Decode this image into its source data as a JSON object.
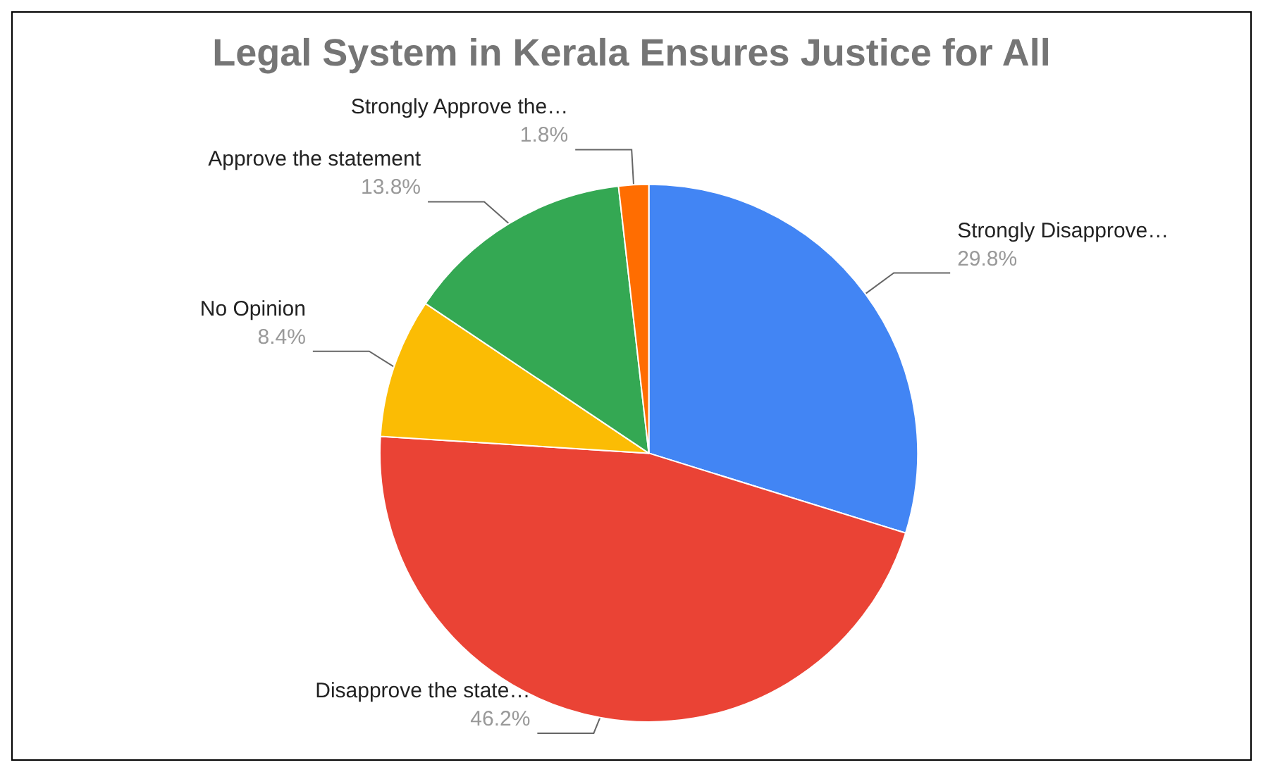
{
  "chart_data": {
    "type": "pie",
    "title": "Legal System in Kerala Ensures Justice for All",
    "categories": [
      "Strongly Disapprove…",
      "Disapprove the state…",
      "No Opinion",
      "Approve the statement",
      "Strongly Approve the…"
    ],
    "values": [
      29.8,
      46.2,
      8.4,
      13.8,
      1.8
    ],
    "colors": [
      "#4285f4",
      "#ea4335",
      "#fbbc04",
      "#34a853",
      "#ff6d01"
    ],
    "value_labels": [
      "29.8%",
      "46.2%",
      "8.4%",
      "13.8%",
      "1.8%"
    ]
  }
}
